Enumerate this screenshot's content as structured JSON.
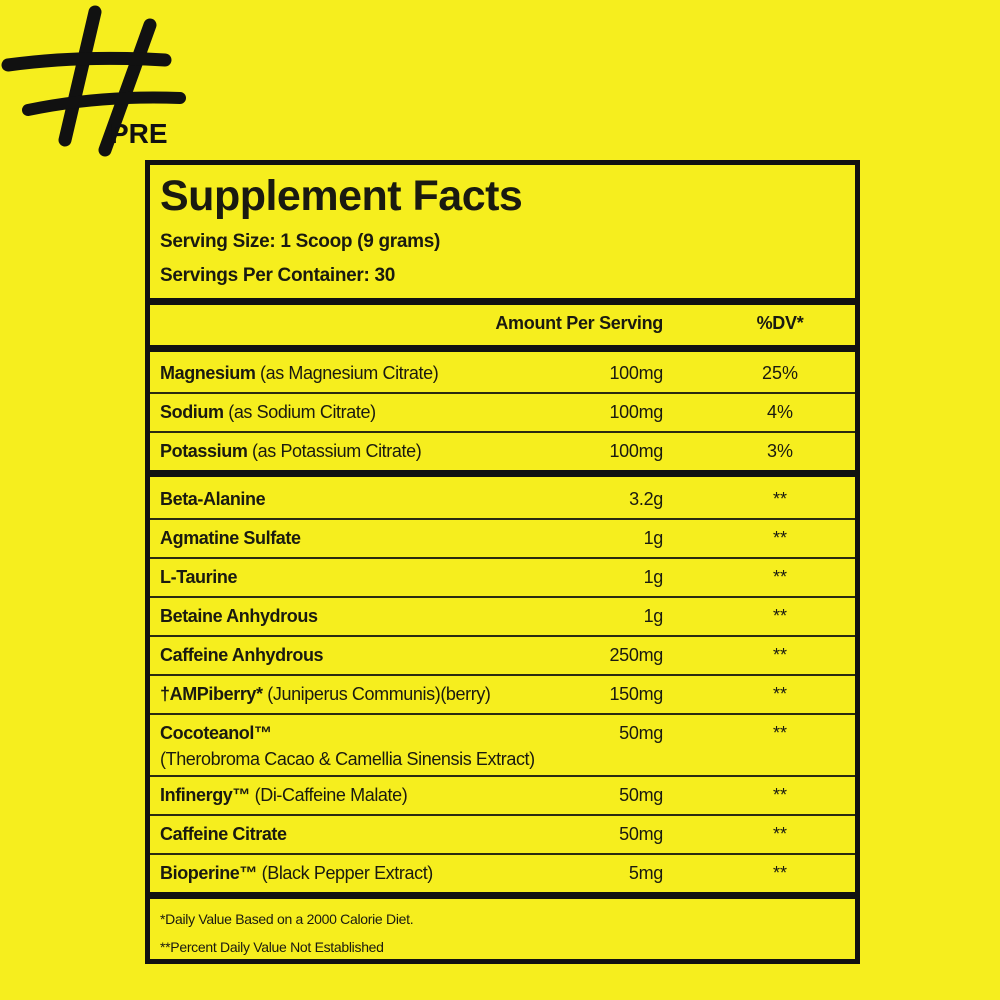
{
  "logo": {
    "text": "#PRE"
  },
  "title": "Supplement Facts",
  "serving_size": "Serving Size: 1 Scoop (9 grams)",
  "servings_per_container": "Servings Per Container: 30",
  "header": {
    "amount": "Amount Per Serving",
    "dv": "%DV*"
  },
  "minerals": [
    {
      "name": "Magnesium",
      "sub": "(as Magnesium Citrate)",
      "amount": "100mg",
      "dv": "25%"
    },
    {
      "name": "Sodium",
      "sub": "(as Sodium Citrate)",
      "amount": "100mg",
      "dv": "4%"
    },
    {
      "name": "Potassium",
      "sub": "(as Potassium Citrate)",
      "amount": "100mg",
      "dv": "3%"
    }
  ],
  "ingredients": [
    {
      "name": "Beta-Alanine",
      "sub": "",
      "amount": "3.2g",
      "dv": "**"
    },
    {
      "name": "Agmatine Sulfate",
      "sub": "",
      "amount": "1g",
      "dv": "**"
    },
    {
      "name": "L-Taurine",
      "sub": "",
      "amount": "1g",
      "dv": "**"
    },
    {
      "name": "Betaine Anhydrous",
      "sub": "",
      "amount": "1g",
      "dv": "**"
    },
    {
      "name": "Caffeine Anhydrous",
      "sub": "",
      "amount": "250mg",
      "dv": "**"
    },
    {
      "name": "†AMPiberry*",
      "sub": "(Juniperus Communis)(berry)",
      "amount": "150mg",
      "dv": "**"
    },
    {
      "name": "Cocoteanol™",
      "sub": "",
      "sub2": "(Therobroma Cacao & Camellia Sinensis Extract)",
      "amount": "50mg",
      "dv": "**"
    },
    {
      "name": "Infinergy™",
      "sub": "(Di-Caffeine Malate)",
      "amount": "50mg",
      "dv": "**"
    },
    {
      "name": "Caffeine Citrate",
      "sub": "",
      "amount": "50mg",
      "dv": "**"
    },
    {
      "name": "Bioperine™",
      "sub": "(Black Pepper Extract)",
      "amount": "5mg",
      "dv": "**"
    }
  ],
  "footnotes": [
    "*Daily Value Based on a 2000 Calorie Diet.",
    "**Percent Daily Value Not Established"
  ]
}
